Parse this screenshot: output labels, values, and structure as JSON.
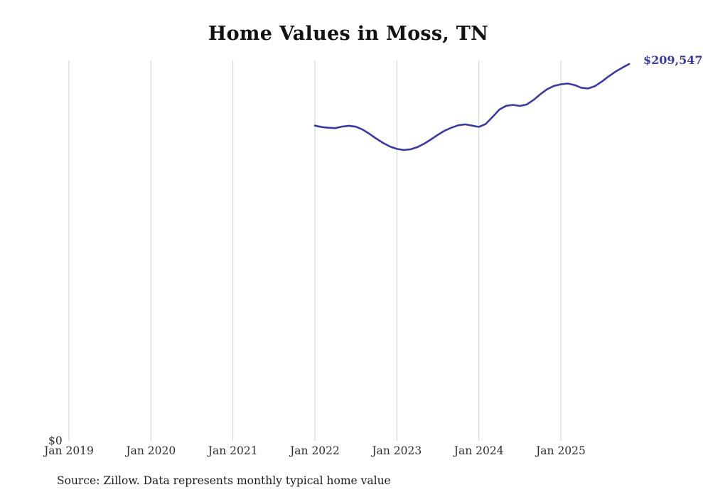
{
  "chart_data": {
    "type": "line",
    "title": "Home Values in Moss, TN",
    "source": "Source: Zillow. Data represents monthly typical home value",
    "y_zero_label": "$0",
    "end_label": "$209,547",
    "latest_value": 209547,
    "line_color": "#3a3aa0",
    "grid_color": "#d0d0d0",
    "legend": "none",
    "grid": "vertical-only",
    "ylim": [
      0,
      209547
    ],
    "x_ticks": [
      "Jan 2019",
      "Jan 2020",
      "Jan 2021",
      "Jan 2022",
      "Jan 2023",
      "Jan 2024",
      "Jan 2025"
    ],
    "x": [
      "2022-01",
      "2022-02",
      "2022-03",
      "2022-04",
      "2022-05",
      "2022-06",
      "2022-07",
      "2022-08",
      "2022-09",
      "2022-10",
      "2022-11",
      "2022-12",
      "2023-01",
      "2023-02",
      "2023-03",
      "2023-04",
      "2023-05",
      "2023-06",
      "2023-07",
      "2023-08",
      "2023-09",
      "2023-10",
      "2023-11",
      "2023-12",
      "2024-01",
      "2024-02",
      "2024-03",
      "2024-04",
      "2024-05",
      "2024-06",
      "2024-07",
      "2024-08",
      "2024-09",
      "2024-10",
      "2024-11",
      "2024-12",
      "2025-01",
      "2025-02",
      "2025-03",
      "2025-04",
      "2025-05",
      "2025-06",
      "2025-07",
      "2025-08",
      "2025-09",
      "2025-10",
      "2025-11"
    ],
    "values": [
      175400,
      174600,
      174200,
      174000,
      174900,
      175300,
      174800,
      173200,
      170800,
      168200,
      165800,
      163800,
      162500,
      161900,
      162300,
      163500,
      165400,
      167800,
      170300,
      172600,
      174300,
      175600,
      176100,
      175400,
      174700,
      176300,
      180200,
      184300,
      186400,
      186900,
      186300,
      187100,
      189600,
      192800,
      195600,
      197400,
      198300,
      198700,
      197900,
      196400,
      196000,
      197300,
      199800,
      202700,
      205300,
      207500,
      209547
    ]
  }
}
